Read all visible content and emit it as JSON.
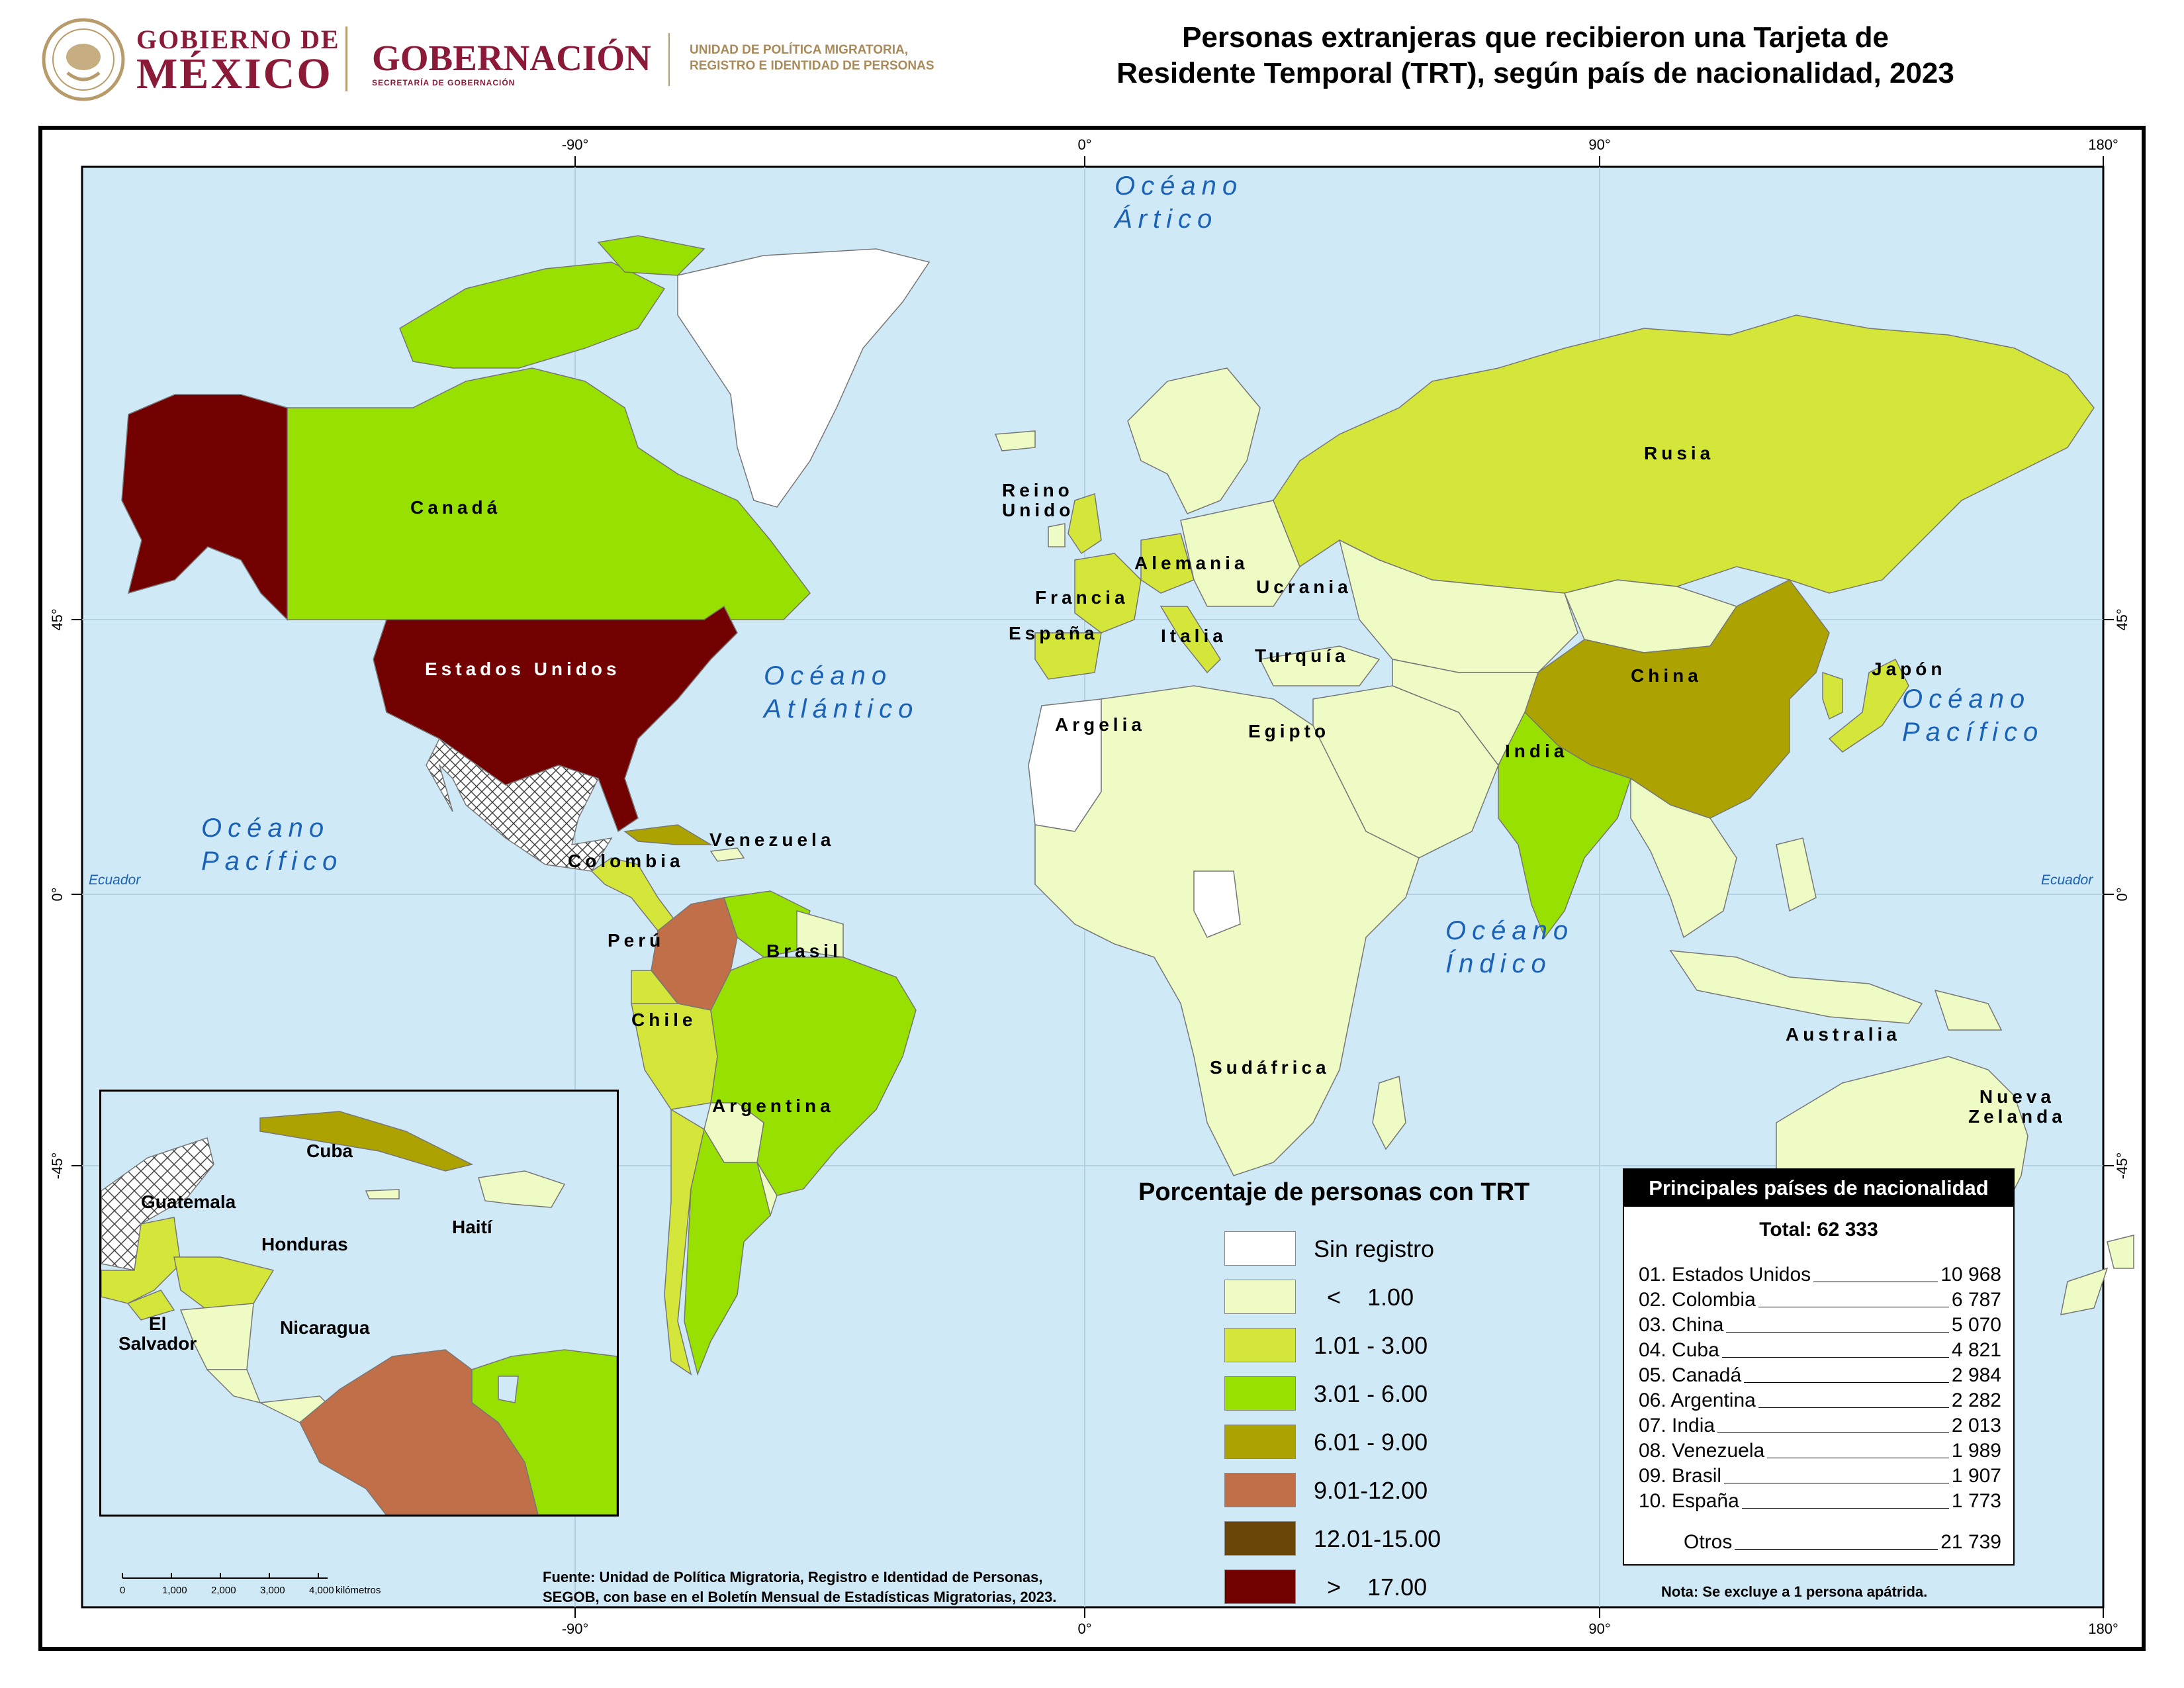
{
  "header": {
    "logo1_line1": "GOBIERNO DE",
    "logo1_line2": "MÉXICO",
    "logo2_name": "GOBERNACIÓN",
    "logo2_sub": "SECRETARÍA DE GOBERNACIÓN",
    "logo3_line1": "UNIDAD DE POLÍTICA MIGRATORIA,",
    "logo3_line2": "REGISTRO E IDENTIDAD DE PERSONAS",
    "title_line1": "Personas extranjeras que recibieron una Tarjeta de",
    "title_line2": "Residente Temporal (TRT), según país de nacionalidad, 2023"
  },
  "colors": {
    "ocean": "#cfe9f7",
    "sin_registro": "#ffffff",
    "lt1": "#eefbc5",
    "c1_3": "#d4e63a",
    "c3_6": "#97e000",
    "c6_9": "#aca300",
    "c9_12": "#c06f48",
    "c12_15": "#6a4708",
    "gt17": "#730000",
    "hatch": "#444444",
    "ocean_text": "#1a62b8",
    "logo_red": "#8b1a38"
  },
  "graticule": {
    "top": [
      "-90°",
      "0°",
      "90°",
      "180°"
    ],
    "bottom": [
      "-90°",
      "0°",
      "90°",
      "180°"
    ],
    "left": [
      "45°",
      "0°",
      "-45°"
    ],
    "right": [
      "45°",
      "0°",
      "-45°"
    ],
    "equator_label": "Ecuador"
  },
  "oceans": {
    "arctic": "Océano\nÁrtico",
    "atlantic": "Océano\nAtlántico",
    "pacific_west": "Océano\nPacífico",
    "pacific_east": "Océano\nPacífico",
    "indian": "Océano\nÍndico"
  },
  "country_labels": {
    "canada": "Canadá",
    "usa": "Estados Unidos",
    "uk": "Reino\nUnido",
    "alemania": "Alemania",
    "ucrania": "Ucrania",
    "francia": "Francia",
    "espana": "España",
    "italia": "Italia",
    "turquia": "Turquía",
    "rusia": "Rusia",
    "china": "China",
    "japon": "Japón",
    "india": "India",
    "argelia": "Argelia",
    "egipto": "Egipto",
    "colombia": "Colombia",
    "venezuela": "Venezuela",
    "peru": "Perú",
    "brasil": "Brasil",
    "chile": "Chile",
    "argentina": "Argentina",
    "sudafrica": "Sudáfrica",
    "australia": "Australia",
    "nueva_zelanda": "Nueva\nZelanda"
  },
  "inset": {
    "labels": {
      "cuba": "Cuba",
      "guatemala": "Guatemala",
      "honduras": "Honduras",
      "haiti": "Haití",
      "el_salvador": "El\nSalvador",
      "nicaragua": "Nicaragua"
    },
    "scale_ticks": [
      "0",
      "1,000",
      "2,000",
      "3,000",
      "4,000"
    ],
    "scale_unit": "kilómetros"
  },
  "legend": {
    "title": "Porcentaje de personas con TRT",
    "items": [
      {
        "label": "Sin registro",
        "color": "#ffffff"
      },
      {
        "label": "  <    1.00",
        "color": "#eefbc5"
      },
      {
        "label": "1.01 - 3.00",
        "color": "#d4e63a"
      },
      {
        "label": "3.01 - 6.00",
        "color": "#97e000"
      },
      {
        "label": "6.01 - 9.00",
        "color": "#aca300"
      },
      {
        "label": "9.01-12.00",
        "color": "#c06f48"
      },
      {
        "label": "12.01-15.00",
        "color": "#6a4708"
      },
      {
        "label": "  >    17.00",
        "color": "#730000"
      }
    ]
  },
  "top_countries": {
    "heading": "Principales países de nacionalidad",
    "total": "Total: 62 333",
    "rows": [
      {
        "name": "01. Estados Unidos",
        "value": "10 968"
      },
      {
        "name": "02. Colombia",
        "value": "6 787"
      },
      {
        "name": "03. China",
        "value": "5 070"
      },
      {
        "name": "04. Cuba",
        "value": "4 821"
      },
      {
        "name": "05. Canadá",
        "value": "2 984"
      },
      {
        "name": "06. Argentina",
        "value": "2 282"
      },
      {
        "name": "07. India",
        "value": "2 013"
      },
      {
        "name": "08. Venezuela",
        "value": "1 989"
      },
      {
        "name": "09. Brasil",
        "value": "1 907"
      },
      {
        "name": "10. España",
        "value": "1 773"
      }
    ],
    "otros_name": "Otros",
    "otros_value": "21 739",
    "note": "Nota: Se excluye a 1 persona apátrida."
  },
  "source": {
    "line1": "Fuente: Unidad de Política Migratoria, Registro e Identidad de Personas,",
    "line2": "SEGOB, con base en el Boletín Mensual de Estadísticas Migratorias, 2023."
  }
}
